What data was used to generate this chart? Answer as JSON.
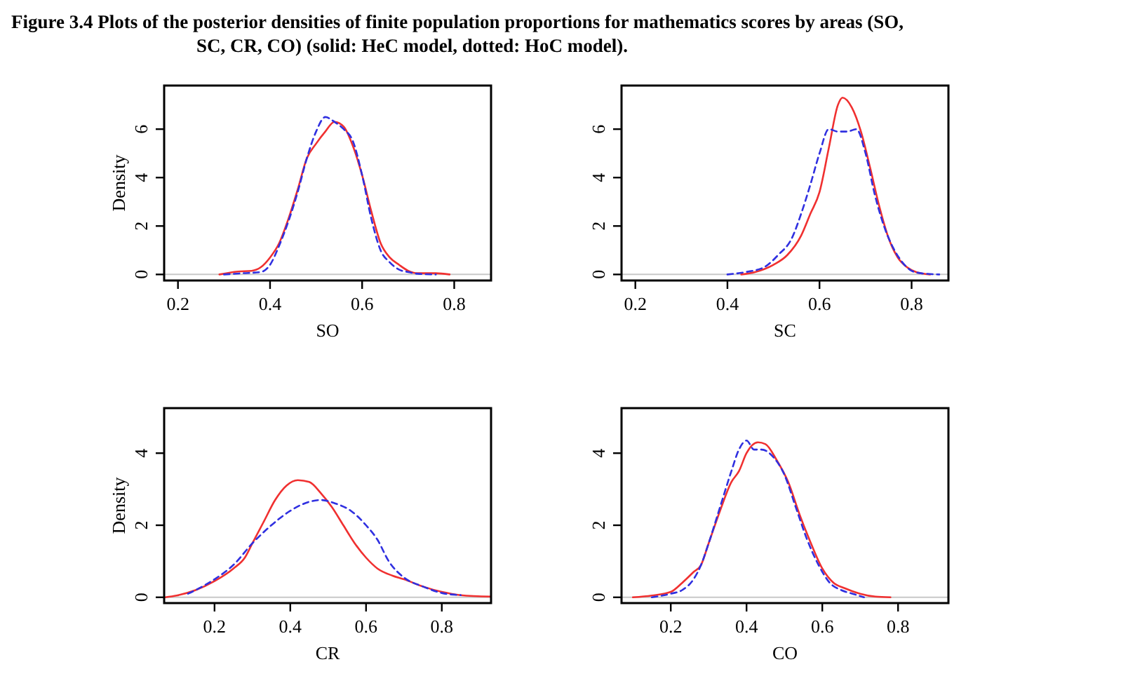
{
  "chart_data": [
    {
      "type": "line",
      "title": "Figure 3.4   Plots of the posterior densities of finite population proportions for mathematics scores by areas (SO,\nSC, CR, CO) (solid: HeC model, dotted: HoC model).",
      "xlabel": "SO",
      "ylabel": "Density",
      "xlim": [
        0.17,
        0.88
      ],
      "ylim": [
        -0.25,
        7.8
      ],
      "xticks": [
        0.2,
        0.4,
        0.6,
        0.8
      ],
      "yticks": [
        0,
        2,
        4,
        6
      ],
      "grid": false,
      "ref_lines": [
        {
          "axis": "y",
          "value": 0,
          "color": "#c8c8c8"
        }
      ],
      "series": [
        {
          "color": "#f03030",
          "line_style": "solid",
          "x": [
            0.29,
            0.33,
            0.36,
            0.38,
            0.4,
            0.42,
            0.44,
            0.46,
            0.48,
            0.5,
            0.52,
            0.54,
            0.56,
            0.58,
            0.6,
            0.62,
            0.64,
            0.66,
            0.68,
            0.7,
            0.72,
            0.76,
            0.79
          ],
          "values": [
            0,
            0.12,
            0.15,
            0.3,
            0.7,
            1.3,
            2.3,
            3.5,
            4.8,
            5.4,
            5.9,
            6.3,
            6.1,
            5.3,
            4.1,
            2.6,
            1.3,
            0.7,
            0.4,
            0.15,
            0.05,
            0.05,
            0
          ]
        },
        {
          "color": "#3030e0",
          "line_style": "dashed",
          "x": [
            0.3,
            0.34,
            0.38,
            0.4,
            0.42,
            0.44,
            0.46,
            0.48,
            0.5,
            0.52,
            0.54,
            0.56,
            0.58,
            0.6,
            0.62,
            0.64,
            0.66,
            0.68,
            0.7,
            0.72,
            0.76
          ],
          "values": [
            0,
            0.05,
            0.1,
            0.4,
            1.2,
            2.2,
            3.4,
            4.8,
            5.9,
            6.5,
            6.3,
            6.0,
            5.5,
            4.1,
            2.3,
            1.0,
            0.5,
            0.2,
            0.1,
            0.03,
            0
          ]
        }
      ]
    },
    {
      "type": "line",
      "xlabel": "SC",
      "xlim": [
        0.17,
        0.88
      ],
      "ylim": [
        -0.25,
        7.8
      ],
      "xticks": [
        0.2,
        0.4,
        0.6,
        0.8
      ],
      "yticks": [
        0,
        2,
        4,
        6
      ],
      "grid": false,
      "ref_lines": [
        {
          "axis": "y",
          "value": 0,
          "color": "#c8c8c8"
        }
      ],
      "series": [
        {
          "color": "#f03030",
          "line_style": "solid",
          "x": [
            0.43,
            0.46,
            0.5,
            0.53,
            0.56,
            0.58,
            0.6,
            0.62,
            0.64,
            0.65,
            0.67,
            0.69,
            0.71,
            0.73,
            0.75,
            0.77,
            0.79,
            0.81,
            0.83,
            0.84
          ],
          "values": [
            0,
            0.1,
            0.4,
            0.8,
            1.6,
            2.5,
            3.4,
            5.2,
            7.0,
            7.3,
            6.9,
            5.9,
            4.4,
            2.8,
            1.5,
            0.7,
            0.3,
            0.1,
            0.02,
            0
          ]
        },
        {
          "color": "#3030e0",
          "line_style": "dashed",
          "x": [
            0.4,
            0.44,
            0.48,
            0.51,
            0.54,
            0.56,
            0.58,
            0.6,
            0.62,
            0.64,
            0.66,
            0.68,
            0.7,
            0.72,
            0.74,
            0.76,
            0.78,
            0.8,
            0.82,
            0.86
          ],
          "values": [
            0,
            0.1,
            0.3,
            0.8,
            1.5,
            2.5,
            3.7,
            5.0,
            6.0,
            5.9,
            5.9,
            6.0,
            5.0,
            3.3,
            2.0,
            1.1,
            0.5,
            0.15,
            0.05,
            0
          ]
        }
      ]
    },
    {
      "type": "line",
      "xlabel": "CR",
      "ylabel": "Density",
      "xlim": [
        0.067,
        0.93
      ],
      "ylim": [
        -0.16,
        5.25
      ],
      "xticks": [
        0.2,
        0.4,
        0.6,
        0.8
      ],
      "yticks": [
        0,
        2,
        4
      ],
      "grid": false,
      "ref_lines": [
        {
          "axis": "y",
          "value": 0,
          "color": "#c8c8c8"
        }
      ],
      "series": [
        {
          "color": "#f03030",
          "line_style": "solid",
          "x": [
            0.07,
            0.1,
            0.15,
            0.2,
            0.25,
            0.28,
            0.3,
            0.33,
            0.36,
            0.39,
            0.42,
            0.45,
            0.48,
            0.51,
            0.54,
            0.57,
            0.6,
            0.63,
            0.67,
            0.7,
            0.75,
            0.8,
            0.85,
            0.93
          ],
          "values": [
            0,
            0.05,
            0.2,
            0.45,
            0.8,
            1.1,
            1.5,
            2.1,
            2.7,
            3.1,
            3.25,
            3.2,
            2.9,
            2.5,
            2.0,
            1.5,
            1.1,
            0.8,
            0.6,
            0.5,
            0.3,
            0.15,
            0.06,
            0.02
          ]
        },
        {
          "color": "#3030e0",
          "line_style": "dashed",
          "x": [
            0.13,
            0.15,
            0.2,
            0.25,
            0.3,
            0.35,
            0.4,
            0.45,
            0.48,
            0.52,
            0.56,
            0.6,
            0.63,
            0.66,
            0.7,
            0.75,
            0.8,
            0.85
          ],
          "values": [
            0.1,
            0.2,
            0.5,
            0.9,
            1.5,
            2.0,
            2.4,
            2.65,
            2.7,
            2.6,
            2.4,
            2.0,
            1.6,
            1.0,
            0.55,
            0.3,
            0.12,
            0.06
          ]
        }
      ]
    },
    {
      "type": "line",
      "xlabel": "CO",
      "xlim": [
        0.07,
        0.933
      ],
      "ylim": [
        -0.16,
        5.25
      ],
      "xticks": [
        0.2,
        0.4,
        0.6,
        0.8
      ],
      "yticks": [
        0,
        2,
        4
      ],
      "grid": false,
      "ref_lines": [
        {
          "axis": "y",
          "value": 0,
          "color": "#c8c8c8"
        }
      ],
      "series": [
        {
          "color": "#f03030",
          "line_style": "solid",
          "x": [
            0.1,
            0.15,
            0.2,
            0.23,
            0.26,
            0.28,
            0.3,
            0.33,
            0.36,
            0.38,
            0.4,
            0.43,
            0.45,
            0.48,
            0.51,
            0.54,
            0.57,
            0.6,
            0.63,
            0.66,
            0.7,
            0.74,
            0.78
          ],
          "values": [
            0,
            0.05,
            0.15,
            0.4,
            0.7,
            0.9,
            1.5,
            2.4,
            3.2,
            3.5,
            4.0,
            4.3,
            4.25,
            3.8,
            3.2,
            2.3,
            1.5,
            0.8,
            0.4,
            0.25,
            0.1,
            0.02,
            0
          ]
        },
        {
          "color": "#3030e0",
          "line_style": "dashed",
          "x": [
            0.15,
            0.2,
            0.23,
            0.26,
            0.28,
            0.3,
            0.33,
            0.36,
            0.38,
            0.4,
            0.42,
            0.44,
            0.47,
            0.5,
            0.53,
            0.56,
            0.59,
            0.62,
            0.65,
            0.68,
            0.71
          ],
          "values": [
            0,
            0.1,
            0.2,
            0.5,
            0.9,
            1.5,
            2.5,
            3.5,
            4.1,
            4.35,
            4.1,
            4.1,
            3.9,
            3.4,
            2.5,
            1.6,
            0.9,
            0.4,
            0.2,
            0.1,
            0
          ]
        }
      ]
    }
  ]
}
